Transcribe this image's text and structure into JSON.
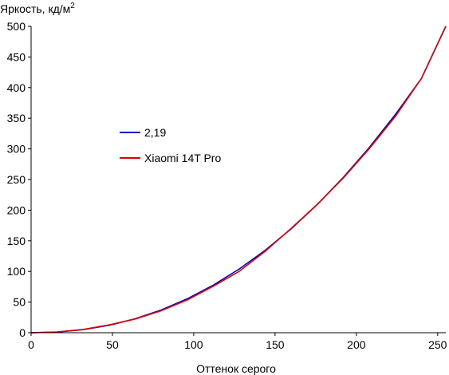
{
  "chart_data": {
    "type": "line",
    "title": "",
    "ylabel": "Яркость, кд/м",
    "ylabel_superscript": "2",
    "xlabel": "Оттенок серого",
    "xlim": [
      0,
      255
    ],
    "ylim": [
      0,
      500
    ],
    "xticks": [
      0,
      50,
      100,
      150,
      200,
      250
    ],
    "yticks": [
      0,
      50,
      100,
      150,
      200,
      250,
      300,
      350,
      400,
      450,
      500
    ],
    "grid": false,
    "legend_placement": "middle-left",
    "series": [
      {
        "name": "2,19",
        "color": "#0000c0",
        "x": [
          0,
          16,
          32,
          48,
          64,
          80,
          96,
          112,
          128,
          144,
          160,
          176,
          192,
          208,
          224,
          240,
          255
        ],
        "y": [
          0,
          1.1,
          5.0,
          12.1,
          22.7,
          37.1,
          55.3,
          77.6,
          104.0,
          134.6,
          169.7,
          209.3,
          253.5,
          302.4,
          356.1,
          414.8,
          500
        ]
      },
      {
        "name": "Xiaomi 14T Pro",
        "color": "#e00000",
        "x": [
          0,
          16,
          32,
          48,
          64,
          80,
          96,
          112,
          128,
          144,
          160,
          176,
          192,
          208,
          224,
          240,
          255
        ],
        "y": [
          0,
          1.3,
          5.3,
          12.8,
          22.3,
          35.9,
          53.5,
          75.8,
          100.2,
          133.0,
          170.5,
          209.5,
          252.5,
          300.5,
          353.0,
          415.0,
          500
        ]
      }
    ]
  }
}
